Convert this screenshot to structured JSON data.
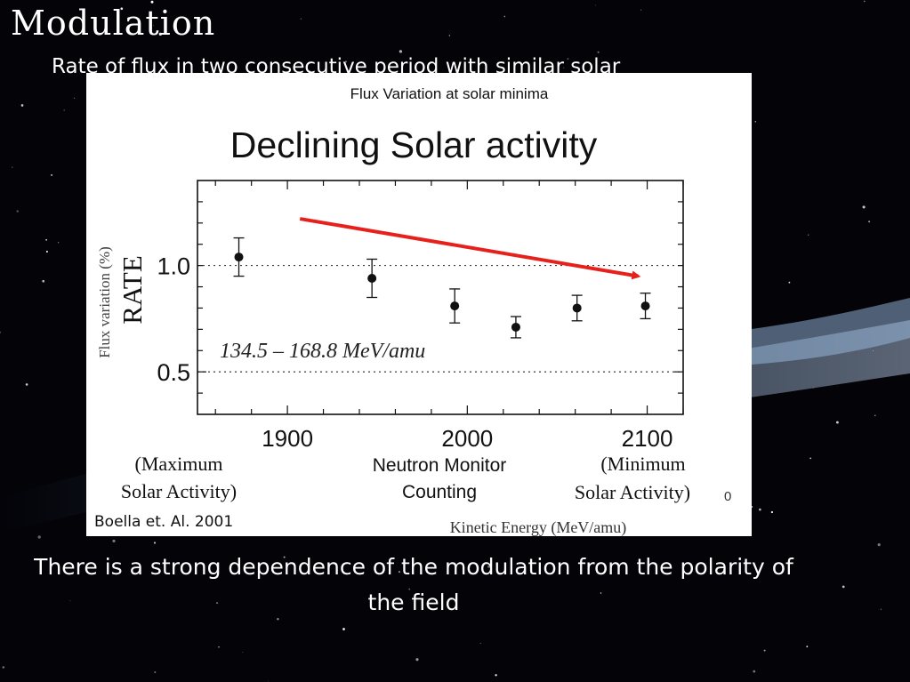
{
  "slide": {
    "title": "Modulation",
    "subtitle": "Rate of flux in two consecutive period with similar solar",
    "body": "There is a strong dependence of the modulation from the polarity of the field"
  },
  "figure": {
    "header": "Flux Variation at solar minima",
    "heading": "Declining Solar activity",
    "overlay_ylabel": "Flux variation (%)",
    "energy_range": "134.5 – 168.8 MeV/amu",
    "left_note": [
      "(Maximum",
      "Solar Activity)"
    ],
    "center_note": [
      "Neutron Monitor",
      "Counting"
    ],
    "right_note": [
      "(Minimum",
      "Solar Activity)"
    ],
    "stray_tick": "0",
    "citation": "Boella et. Al. 2001",
    "colors": {
      "arrow": "#e8201c",
      "points": "#111111",
      "background": "#ffffff"
    }
  },
  "chart_data": {
    "type": "scatter",
    "ylabel": "RATE",
    "xlabel": "Kinetic Energy (MeV/amu)",
    "x_ticks": [
      1900,
      2000,
      2100
    ],
    "y_ticks": [
      0.5,
      1.0
    ],
    "y_tick_labels": [
      "0.5",
      "1.0"
    ],
    "xlim": [
      1850,
      2120
    ],
    "ylim": [
      0.3,
      1.4
    ],
    "grid": "dotted horizontal at 0.5 and 1.0",
    "series": [
      {
        "x": [
          1873,
          1947,
          1993,
          2027,
          2061,
          2099
        ],
        "y": [
          1.04,
          0.94,
          0.81,
          0.71,
          0.8,
          0.81
        ],
        "err": [
          0.09,
          0.09,
          0.08,
          0.05,
          0.06,
          0.06
        ]
      }
    ],
    "annotation_arrow": {
      "from": [
        1907,
        1.22
      ],
      "to": [
        2095,
        0.95
      ],
      "label": ""
    }
  }
}
